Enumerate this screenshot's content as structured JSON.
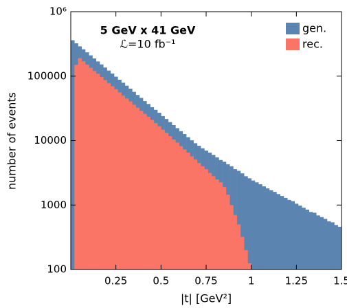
{
  "chart_data": {
    "type": "histogram",
    "title": "5 GeV x 41 GeV",
    "subtitle": "ℒ=10 fb⁻¹",
    "x_label": "|t| [GeV²]",
    "y_label": "number of events",
    "log_y": true,
    "legend": "upper right",
    "xlim": [
      0,
      1.5
    ],
    "ylim": [
      100,
      1000000
    ],
    "xticks": [
      0.25,
      0.5,
      0.75,
      1,
      1.25,
      1.5
    ],
    "yticks": [
      100,
      1000,
      10000,
      100000,
      {
        "value": 1000000,
        "label": "10⁶"
      }
    ],
    "bins": [
      0,
      0.02,
      0.04,
      0.06,
      0.08,
      0.1,
      0.12,
      0.14,
      0.16,
      0.18,
      0.2,
      0.22,
      0.24,
      0.26,
      0.28,
      0.3,
      0.32,
      0.34,
      0.36,
      0.38,
      0.4,
      0.42,
      0.44,
      0.46,
      0.48,
      0.5,
      0.52,
      0.54,
      0.56,
      0.58,
      0.6,
      0.62,
      0.64,
      0.66,
      0.68,
      0.7,
      0.72,
      0.74,
      0.76,
      0.78,
      0.8,
      0.82,
      0.84,
      0.86,
      0.88,
      0.9,
      0.92,
      0.94,
      0.96,
      0.98,
      1,
      1.02,
      1.04,
      1.06,
      1.08,
      1.1,
      1.12,
      1.14,
      1.16,
      1.18,
      1.2,
      1.22,
      1.24,
      1.26,
      1.28,
      1.3,
      1.32,
      1.34,
      1.36,
      1.38,
      1.4,
      1.42,
      1.44,
      1.46,
      1.48,
      1.5
    ],
    "series": [
      {
        "name": "gen.",
        "color": "#5b84b1",
        "values": [
          360000,
          323000,
          290000,
          261000,
          234000,
          210000,
          188000,
          169000,
          152000,
          136000,
          122000,
          110000,
          98000,
          88000,
          79000,
          71000,
          64000,
          57000,
          51000,
          46000,
          41000,
          37000,
          33000,
          30000,
          27000,
          24000,
          21600,
          19400,
          17400,
          15600,
          14000,
          12600,
          11300,
          10100,
          9100,
          8300,
          7600,
          7000,
          6500,
          6000,
          5500,
          5000,
          4700,
          4300,
          4000,
          3600,
          3400,
          3100,
          2800,
          2600,
          2400,
          2250,
          2100,
          1950,
          1820,
          1700,
          1600,
          1480,
          1380,
          1290,
          1200,
          1150,
          1050,
          980,
          910,
          850,
          780,
          760,
          690,
          650,
          610,
          560,
          540,
          490,
          460
        ]
      },
      {
        "name": "rec.",
        "color": "#fa7565",
        "values": [
          0,
          150000,
          190000,
          170000,
          151000,
          135000,
          120000,
          109000,
          97000,
          87000,
          78000,
          70000,
          63000,
          56000,
          50000,
          45000,
          40500,
          36000,
          32500,
          29000,
          26000,
          23400,
          21000,
          18700,
          16700,
          14800,
          13200,
          11700,
          10400,
          9300,
          8200,
          7300,
          6500,
          5700,
          5100,
          4500,
          4000,
          3600,
          3150,
          2800,
          2500,
          2250,
          1900,
          1450,
          1000,
          700,
          500,
          320,
          200,
          125,
          0,
          0,
          0,
          0,
          0,
          0,
          0,
          0,
          0,
          0,
          0,
          0,
          0,
          0,
          0,
          0,
          0,
          0,
          0,
          0,
          0,
          0,
          0,
          0,
          0
        ]
      }
    ]
  }
}
